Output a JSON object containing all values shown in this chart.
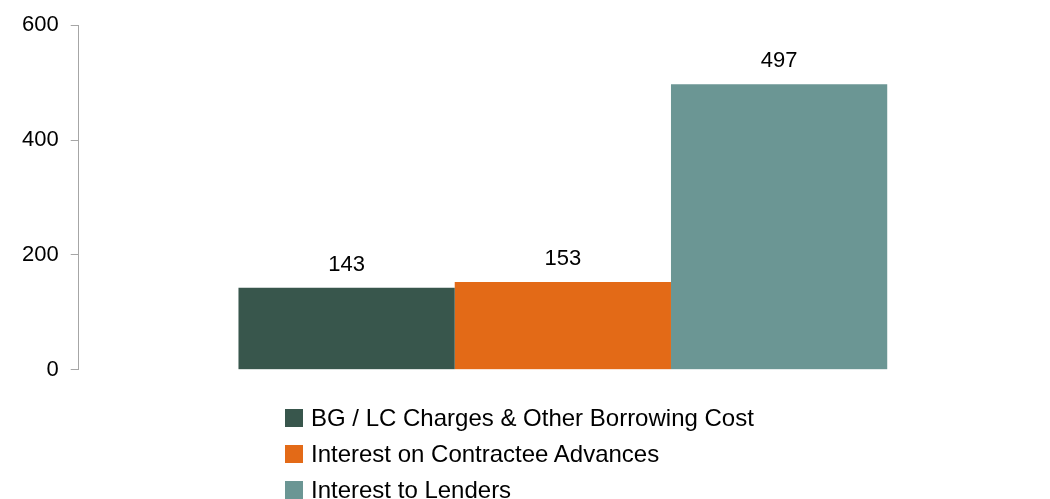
{
  "chart_data": {
    "type": "bar",
    "categories": [
      null
    ],
    "series": [
      {
        "name": "BG / LC Charges & Other Borrowing Cost",
        "color": "#38564c",
        "values": [
          143
        ]
      },
      {
        "name": "Interest on Contractee Advances",
        "color": "#e36a17",
        "values": [
          153
        ]
      },
      {
        "name": "Interest to Lenders",
        "color": "#6b9694",
        "values": [
          497
        ]
      }
    ],
    "ylim": [
      0,
      600
    ],
    "yticks": [
      0,
      200,
      400,
      600
    ],
    "grid": false,
    "legend": "bottom",
    "data_labels": true
  }
}
